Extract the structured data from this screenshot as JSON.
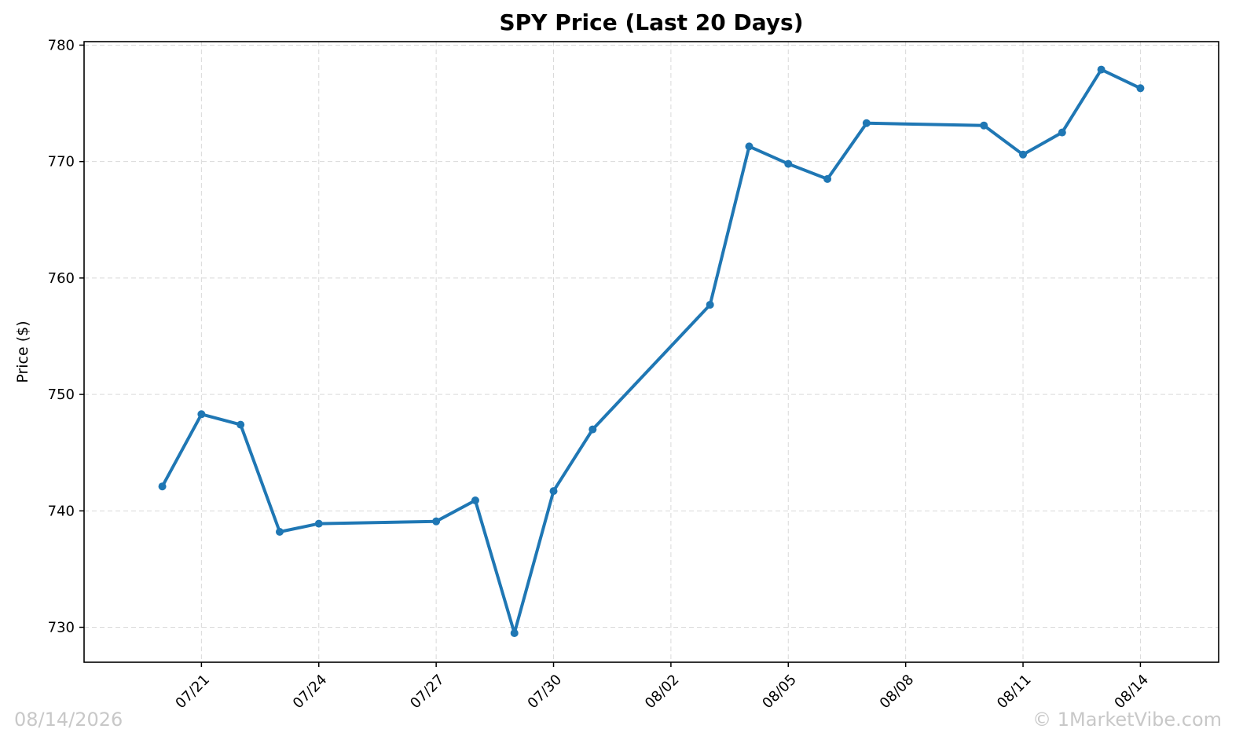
{
  "chart_data": {
    "type": "line",
    "title": "SPY Price (Last 20 Days)",
    "xlabel": "",
    "ylabel": "Price ($)",
    "x_axis": {
      "type": "date",
      "range": [
        "2026-07-18",
        "2026-08-16"
      ],
      "ticks": [
        {
          "date": "2026-07-21",
          "label": "07/21"
        },
        {
          "date": "2026-07-24",
          "label": "07/24"
        },
        {
          "date": "2026-07-27",
          "label": "07/27"
        },
        {
          "date": "2026-07-30",
          "label": "07/30"
        },
        {
          "date": "2026-08-02",
          "label": "08/02"
        },
        {
          "date": "2026-08-05",
          "label": "08/05"
        },
        {
          "date": "2026-08-08",
          "label": "08/08"
        },
        {
          "date": "2026-08-11",
          "label": "08/11"
        },
        {
          "date": "2026-08-14",
          "label": "08/14"
        }
      ]
    },
    "ylim": [
      727,
      780.3
    ],
    "yticks": [
      730,
      740,
      750,
      760,
      770,
      780
    ],
    "grid": true,
    "legend": "none",
    "series": [
      {
        "color": "#1f77b4",
        "marker": "circle",
        "points": [
          {
            "x": "2026-07-20",
            "y": 742.1
          },
          {
            "x": "2026-07-21",
            "y": 748.3
          },
          {
            "x": "2026-07-22",
            "y": 747.4
          },
          {
            "x": "2026-07-23",
            "y": 738.2
          },
          {
            "x": "2026-07-24",
            "y": 738.9
          },
          {
            "x": "2026-07-27",
            "y": 739.1
          },
          {
            "x": "2026-07-28",
            "y": 740.9
          },
          {
            "x": "2026-07-29",
            "y": 729.5
          },
          {
            "x": "2026-07-30",
            "y": 741.7
          },
          {
            "x": "2026-07-31",
            "y": 747.0
          },
          {
            "x": "2026-08-03",
            "y": 757.7
          },
          {
            "x": "2026-08-04",
            "y": 771.3
          },
          {
            "x": "2026-08-05",
            "y": 769.8
          },
          {
            "x": "2026-08-06",
            "y": 768.5
          },
          {
            "x": "2026-08-07",
            "y": 773.3
          },
          {
            "x": "2026-08-10",
            "y": 773.1
          },
          {
            "x": "2026-08-11",
            "y": 770.6
          },
          {
            "x": "2026-08-12",
            "y": 772.5
          },
          {
            "x": "2026-08-13",
            "y": 777.9
          },
          {
            "x": "2026-08-14",
            "y": 776.3
          }
        ]
      }
    ]
  },
  "watermarks": {
    "date": "08/14/2026",
    "copyright": "© 1MarketVibe.com"
  }
}
